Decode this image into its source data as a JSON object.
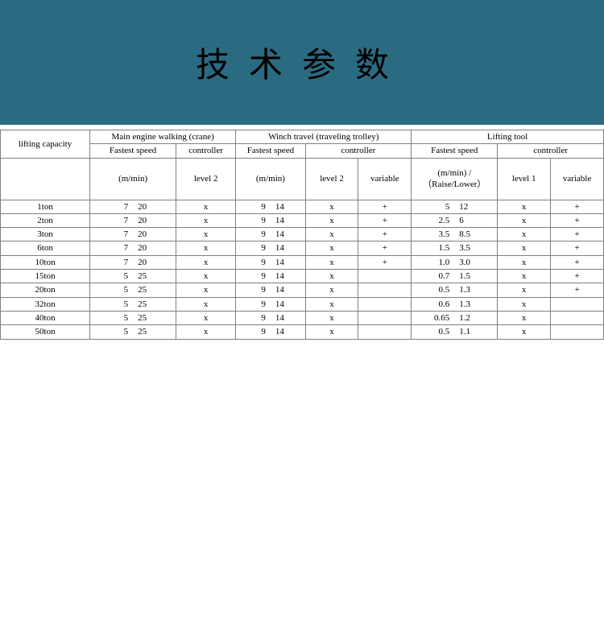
{
  "banner": {
    "title": "技术参数",
    "bg_color": "#2a6b82"
  },
  "headers": {
    "capacity": "lifting capacity",
    "main_engine": "Main engine walking (crane)",
    "winch": "Winch travel (traveling trolley)",
    "lifting_tool": "Lifting tool",
    "fastest_speed": "Fastest speed",
    "controller": "controller",
    "unit_mmin": "(m/min)",
    "level2": "level 2",
    "variable": "variable",
    "lt_unit": "(m/min) /（Raise/Lower）",
    "level1": "level 1"
  },
  "rows": [
    {
      "cap": "1ton",
      "me": [
        "7",
        "20"
      ],
      "me_ctrl": "x",
      "wt": [
        "9",
        "14"
      ],
      "wt_l2": "x",
      "wt_var": "+",
      "lt": [
        "5",
        "12"
      ],
      "lt_l1": "x",
      "lt_var": "+"
    },
    {
      "cap": "2ton",
      "me": [
        "7",
        "20"
      ],
      "me_ctrl": "x",
      "wt": [
        "9",
        "14"
      ],
      "wt_l2": "x",
      "wt_var": "+",
      "lt": [
        "2.5",
        "6"
      ],
      "lt_l1": "x",
      "lt_var": "+"
    },
    {
      "cap": "3ton",
      "me": [
        "7",
        "20"
      ],
      "me_ctrl": "x",
      "wt": [
        "9",
        "14"
      ],
      "wt_l2": "x",
      "wt_var": "+",
      "lt": [
        "3.5",
        "8.5"
      ],
      "lt_l1": "x",
      "lt_var": "+"
    },
    {
      "cap": "6ton",
      "me": [
        "7",
        "20"
      ],
      "me_ctrl": "x",
      "wt": [
        "9",
        "14"
      ],
      "wt_l2": "x",
      "wt_var": "+",
      "lt": [
        "1.5",
        "3.5"
      ],
      "lt_l1": "x",
      "lt_var": "+"
    },
    {
      "cap": "10ton",
      "me": [
        "7",
        "20"
      ],
      "me_ctrl": "x",
      "wt": [
        "9",
        "14"
      ],
      "wt_l2": "x",
      "wt_var": "+",
      "lt": [
        "1.0",
        "3.0"
      ],
      "lt_l1": "x",
      "lt_var": "+"
    },
    {
      "cap": "15ton",
      "me": [
        "5",
        "25"
      ],
      "me_ctrl": "x",
      "wt": [
        "9",
        "14"
      ],
      "wt_l2": "x",
      "wt_var": "",
      "lt": [
        "0.7",
        "1.5"
      ],
      "lt_l1": "x",
      "lt_var": "+"
    },
    {
      "cap": "20ton",
      "me": [
        "5",
        "25"
      ],
      "me_ctrl": "x",
      "wt": [
        "9",
        "14"
      ],
      "wt_l2": "x",
      "wt_var": "",
      "lt": [
        "0.5",
        "1.3"
      ],
      "lt_l1": "x",
      "lt_var": "+"
    },
    {
      "cap": "32ton",
      "me": [
        "5",
        "25"
      ],
      "me_ctrl": "x",
      "wt": [
        "9",
        "14"
      ],
      "wt_l2": "x",
      "wt_var": "",
      "lt": [
        "0.6",
        "1.3"
      ],
      "lt_l1": "x",
      "lt_var": ""
    },
    {
      "cap": "40ton",
      "me": [
        "5",
        "25"
      ],
      "me_ctrl": "x",
      "wt": [
        "9",
        "14"
      ],
      "wt_l2": "x",
      "wt_var": "",
      "lt": [
        "0.65",
        "1.2"
      ],
      "lt_l1": "x",
      "lt_var": ""
    },
    {
      "cap": "50ton",
      "me": [
        "5",
        "25"
      ],
      "me_ctrl": "x",
      "wt": [
        "9",
        "14"
      ],
      "wt_l2": "x",
      "wt_var": "",
      "lt": [
        "0.5",
        "1.1"
      ],
      "lt_l1": "x",
      "lt_var": ""
    }
  ]
}
